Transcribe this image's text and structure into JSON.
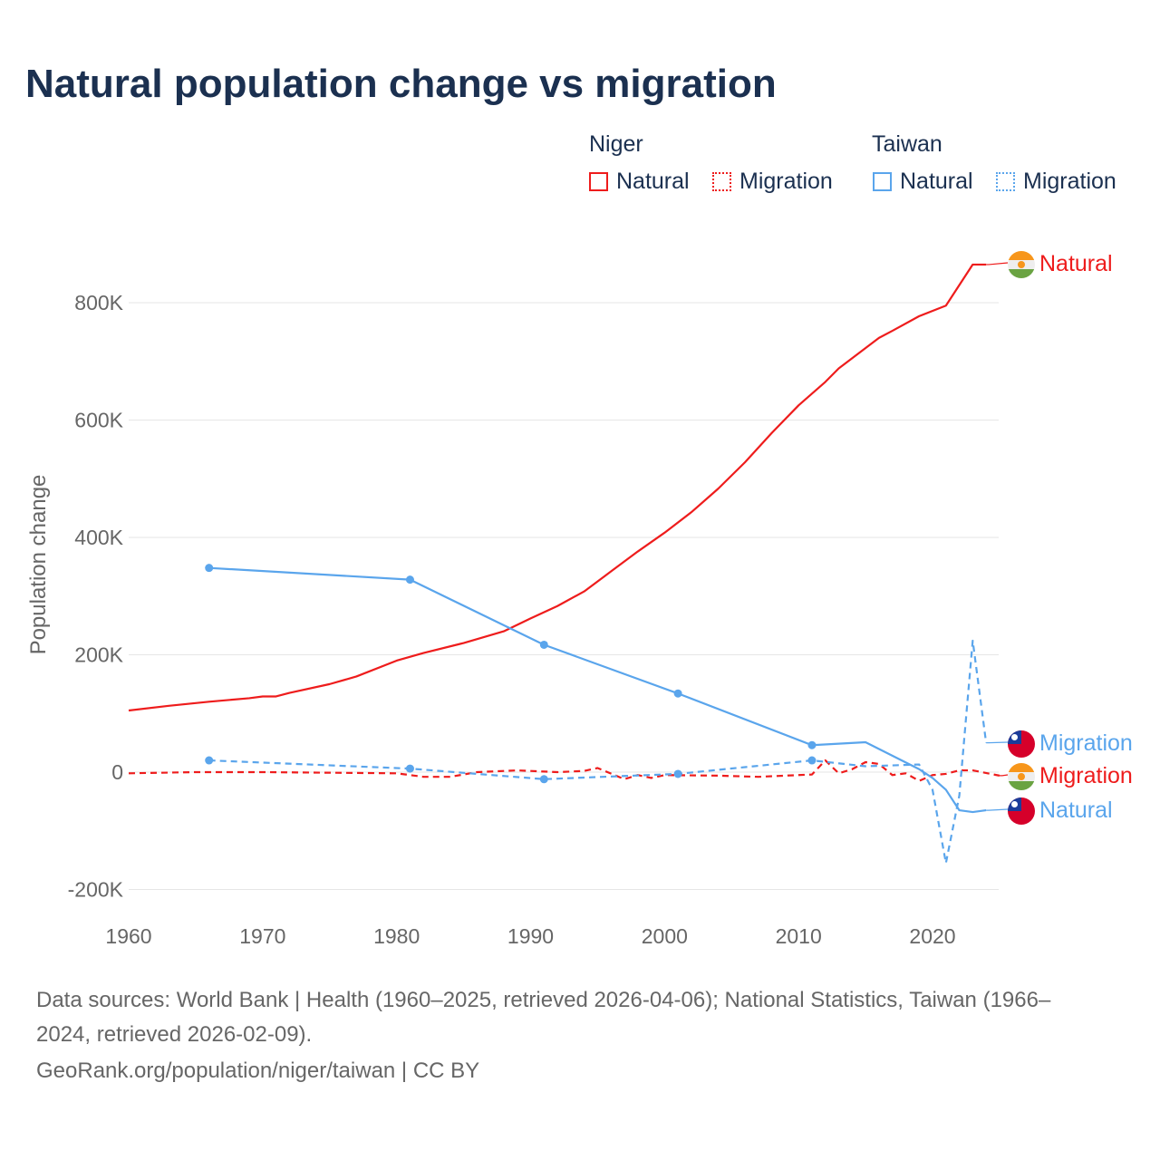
{
  "chart_data": {
    "type": "line",
    "title": "Natural population change vs migration",
    "ylabel": "Population change",
    "xlim": [
      1960,
      2025
    ],
    "ylim": [
      -200000,
      880000
    ],
    "x_ticks": [
      "1960",
      "1970",
      "1980",
      "1990",
      "2000",
      "2010",
      "2020"
    ],
    "y_ticks": [
      {
        "v": 800000,
        "l": "800K"
      },
      {
        "v": 600000,
        "l": "600K"
      },
      {
        "v": 400000,
        "l": "400K"
      },
      {
        "v": 200000,
        "l": "200K"
      },
      {
        "v": 0,
        "l": "0"
      },
      {
        "v": -200000,
        "l": "-200K"
      }
    ],
    "legend": {
      "groups": [
        {
          "name": "Niger",
          "items": [
            "Natural",
            "Migration"
          ]
        },
        {
          "name": "Taiwan",
          "items": [
            "Natural",
            "Migration"
          ]
        }
      ]
    },
    "series": [
      {
        "name": "Niger Natural",
        "label": "Natural",
        "color": "#ee1c1c",
        "dash": false,
        "flag": "niger",
        "points": [
          [
            1960,
            105000
          ],
          [
            1963,
            113000
          ],
          [
            1966,
            120000
          ],
          [
            1969,
            126000
          ],
          [
            1970,
            129000
          ],
          [
            1971,
            129000
          ],
          [
            1972,
            135000
          ],
          [
            1975,
            150000
          ],
          [
            1977,
            163000
          ],
          [
            1980,
            190000
          ],
          [
            1982,
            203000
          ],
          [
            1985,
            220000
          ],
          [
            1988,
            240000
          ],
          [
            1990,
            262000
          ],
          [
            1992,
            283000
          ],
          [
            1994,
            308000
          ],
          [
            1996,
            342000
          ],
          [
            1998,
            376000
          ],
          [
            2000,
            408000
          ],
          [
            2002,
            443000
          ],
          [
            2004,
            483000
          ],
          [
            2006,
            528000
          ],
          [
            2008,
            578000
          ],
          [
            2010,
            625000
          ],
          [
            2012,
            665000
          ],
          [
            2013,
            688000
          ],
          [
            2016,
            740000
          ],
          [
            2017,
            752000
          ],
          [
            2019,
            777000
          ],
          [
            2021,
            795000
          ],
          [
            2023,
            865000
          ],
          [
            2024,
            865000
          ]
        ]
      },
      {
        "name": "Niger Migration",
        "label": "Migration",
        "color": "#ee1c1c",
        "dash": true,
        "flag": "niger",
        "points": [
          [
            1960,
            -2000
          ],
          [
            1965,
            0
          ],
          [
            1970,
            0
          ],
          [
            1975,
            -1000
          ],
          [
            1980,
            -2000
          ],
          [
            1982,
            -8000
          ],
          [
            1984,
            -8000
          ],
          [
            1986,
            0
          ],
          [
            1989,
            3000
          ],
          [
            1992,
            0
          ],
          [
            1994,
            2000
          ],
          [
            1995,
            7000
          ],
          [
            1997,
            -12000
          ],
          [
            1998,
            -5000
          ],
          [
            1999,
            -10000
          ],
          [
            2000,
            -5000
          ],
          [
            2004,
            -6000
          ],
          [
            2007,
            -8000
          ],
          [
            2011,
            -4000
          ],
          [
            2012,
            20000
          ],
          [
            2013,
            -2000
          ],
          [
            2014,
            5000
          ],
          [
            2015,
            17000
          ],
          [
            2016,
            14000
          ],
          [
            2017,
            -5000
          ],
          [
            2018,
            -2000
          ],
          [
            2019,
            -15000
          ],
          [
            2020,
            -5000
          ],
          [
            2021,
            -3000
          ],
          [
            2022,
            3000
          ],
          [
            2023,
            3000
          ],
          [
            2025,
            -6000
          ]
        ]
      },
      {
        "name": "Taiwan Migration",
        "label": "Migration",
        "color": "#5aa5ec",
        "dash": true,
        "flag": "taiwan",
        "dots": [
          1966,
          1981,
          1991,
          2001,
          2011
        ],
        "points": [
          [
            1966,
            20000
          ],
          [
            1981,
            6000
          ],
          [
            1991,
            -12000
          ],
          [
            2001,
            -3000
          ],
          [
            2011,
            20000
          ],
          [
            2015,
            10000
          ],
          [
            2019,
            13000
          ],
          [
            2020,
            -30000
          ],
          [
            2021,
            -155000
          ],
          [
            2022,
            -40000
          ],
          [
            2023,
            224000
          ],
          [
            2024,
            50000
          ]
        ]
      },
      {
        "name": "Taiwan Natural",
        "label": "Natural",
        "color": "#5aa5ec",
        "dash": false,
        "flag": "taiwan",
        "dots": [
          1966,
          1981,
          1991,
          2001,
          2011
        ],
        "points": [
          [
            1966,
            348000
          ],
          [
            1981,
            328000
          ],
          [
            1991,
            217000
          ],
          [
            2001,
            134000
          ],
          [
            2011,
            46000
          ],
          [
            2015,
            51000
          ],
          [
            2019,
            5000
          ],
          [
            2020,
            -10000
          ],
          [
            2021,
            -30000
          ],
          [
            2022,
            -65000
          ],
          [
            2023,
            -68000
          ],
          [
            2024,
            -65000
          ]
        ]
      }
    ]
  },
  "footer": {
    "line1": "Data sources: World Bank | Health (1960–2025, retrieved 2026-04-06); National Statistics, Taiwan (1966–",
    "line2": "2024, retrieved 2026-02-09).",
    "line3": "GeoRank.org/population/niger/taiwan | CC BY"
  }
}
